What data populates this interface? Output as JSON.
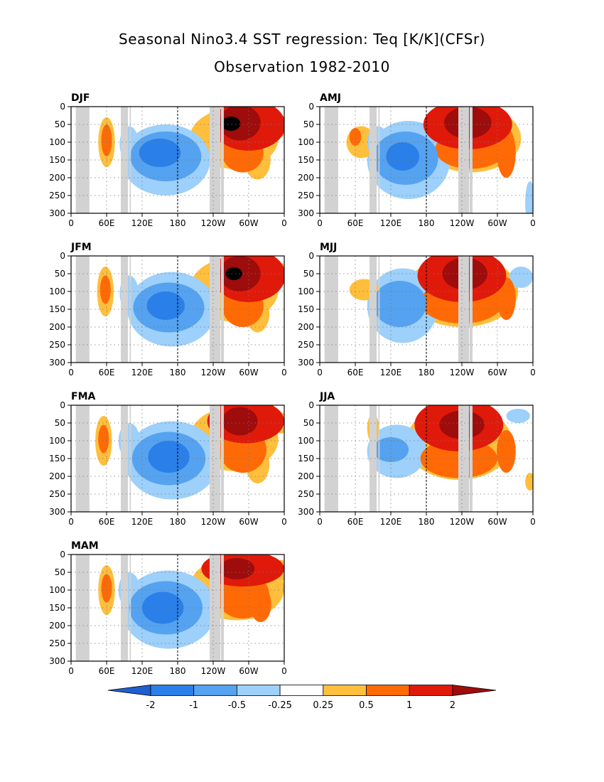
{
  "title": "Seasonal Nino3.4 SST regression: Teq [K/K](CFSr)",
  "subtitle": "Observation 1982-2010",
  "x_ticks": [
    "0",
    "60E",
    "120E",
    "180",
    "120W",
    "60W",
    "0"
  ],
  "y_ticks": [
    "0",
    "50",
    "100",
    "150",
    "200",
    "250",
    "300"
  ],
  "colorbar": {
    "labels": [
      "-2",
      "-1",
      "-0.5",
      "-0.25",
      "0.25",
      "0.5",
      "1",
      "2"
    ],
    "colors": [
      "#1f5fd0",
      "#2a7fe8",
      "#55a2f0",
      "#9dd0fa",
      "#ffffff",
      "#ffbf3c",
      "#ff6a06",
      "#e01a0a",
      "#9e0c0c"
    ]
  },
  "colors": {
    "land": "#d2d2d2",
    "grid": "#777777"
  },
  "chart_data": [
    {
      "type": "heatmap",
      "season": "DJF",
      "xlim": [
        0,
        360
      ],
      "ylim": [
        300,
        0
      ],
      "blobs": [
        {
          "lon": 300,
          "lat": 52,
          "rx": 62,
          "ry": 72,
          "c": 3
        },
        {
          "lon": 285,
          "lat": 45,
          "rx": 35,
          "ry": 50,
          "c": 4
        },
        {
          "lon": 270,
          "lat": 48,
          "rx": 16,
          "ry": 20,
          "c": 5
        },
        {
          "lon": 290,
          "lat": 130,
          "rx": 35,
          "ry": 55,
          "c": 2
        },
        {
          "lon": 315,
          "lat": 150,
          "rx": 22,
          "ry": 55,
          "c": 1
        },
        {
          "lon": 275,
          "lat": 90,
          "rx": 75,
          "ry": 85,
          "c": 1
        },
        {
          "lon": 160,
          "lat": 150,
          "rx": 75,
          "ry": 100,
          "c": -1
        },
        {
          "lon": 160,
          "lat": 140,
          "rx": 60,
          "ry": 70,
          "c": -2
        },
        {
          "lon": 150,
          "lat": 130,
          "rx": 35,
          "ry": 40,
          "c": -3
        },
        {
          "lon": 60,
          "lat": 100,
          "rx": 14,
          "ry": 70,
          "c": 1
        },
        {
          "lon": 60,
          "lat": 95,
          "rx": 9,
          "ry": 45,
          "c": 2
        },
        {
          "lon": 98,
          "lat": 105,
          "rx": 16,
          "ry": 50,
          "c": -1
        },
        {
          "lon": 355,
          "lat": 55,
          "rx": 10,
          "ry": 30,
          "c": 1
        }
      ]
    },
    {
      "type": "heatmap",
      "season": "JFM",
      "xlim": [
        0,
        360
      ],
      "ylim": [
        300,
        0
      ],
      "blobs": [
        {
          "lon": 300,
          "lat": 55,
          "rx": 62,
          "ry": 75,
          "c": 3
        },
        {
          "lon": 285,
          "lat": 50,
          "rx": 35,
          "ry": 50,
          "c": 4
        },
        {
          "lon": 275,
          "lat": 50,
          "rx": 14,
          "ry": 18,
          "c": 5
        },
        {
          "lon": 290,
          "lat": 140,
          "rx": 35,
          "ry": 60,
          "c": 2
        },
        {
          "lon": 315,
          "lat": 160,
          "rx": 20,
          "ry": 55,
          "c": 1
        },
        {
          "lon": 275,
          "lat": 95,
          "rx": 75,
          "ry": 90,
          "c": 1
        },
        {
          "lon": 170,
          "lat": 150,
          "rx": 75,
          "ry": 105,
          "c": -1
        },
        {
          "lon": 165,
          "lat": 145,
          "rx": 60,
          "ry": 70,
          "c": -2
        },
        {
          "lon": 160,
          "lat": 140,
          "rx": 32,
          "ry": 40,
          "c": -3
        },
        {
          "lon": 58,
          "lat": 100,
          "rx": 14,
          "ry": 70,
          "c": 1
        },
        {
          "lon": 58,
          "lat": 95,
          "rx": 9,
          "ry": 40,
          "c": 2
        },
        {
          "lon": 98,
          "lat": 105,
          "rx": 16,
          "ry": 50,
          "c": -1
        },
        {
          "lon": 355,
          "lat": 50,
          "rx": 10,
          "ry": 30,
          "c": 1
        }
      ]
    },
    {
      "type": "heatmap",
      "season": "FMA",
      "xlim": [
        0,
        360
      ],
      "ylim": [
        300,
        0
      ],
      "blobs": [
        {
          "lon": 295,
          "lat": 45,
          "rx": 65,
          "ry": 62,
          "c": 3
        },
        {
          "lon": 285,
          "lat": 45,
          "rx": 30,
          "ry": 40,
          "c": 4
        },
        {
          "lon": 290,
          "lat": 125,
          "rx": 40,
          "ry": 65,
          "c": 2
        },
        {
          "lon": 315,
          "lat": 165,
          "rx": 20,
          "ry": 55,
          "c": 1
        },
        {
          "lon": 275,
          "lat": 95,
          "rx": 75,
          "ry": 90,
          "c": 1
        },
        {
          "lon": 170,
          "lat": 155,
          "rx": 80,
          "ry": 110,
          "c": -1
        },
        {
          "lon": 165,
          "lat": 150,
          "rx": 62,
          "ry": 75,
          "c": -2
        },
        {
          "lon": 165,
          "lat": 145,
          "rx": 35,
          "ry": 45,
          "c": -3
        },
        {
          "lon": 55,
          "lat": 100,
          "rx": 14,
          "ry": 70,
          "c": 1
        },
        {
          "lon": 55,
          "lat": 95,
          "rx": 9,
          "ry": 40,
          "c": 2
        },
        {
          "lon": 98,
          "lat": 100,
          "rx": 18,
          "ry": 50,
          "c": -1
        },
        {
          "lon": 355,
          "lat": 50,
          "rx": 10,
          "ry": 30,
          "c": 1
        }
      ]
    },
    {
      "type": "heatmap",
      "season": "MAM",
      "xlim": [
        0,
        360
      ],
      "ylim": [
        300,
        0
      ],
      "blobs": [
        {
          "lon": 290,
          "lat": 40,
          "rx": 70,
          "ry": 50,
          "c": 3
        },
        {
          "lon": 280,
          "lat": 40,
          "rx": 30,
          "ry": 30,
          "c": 4
        },
        {
          "lon": 290,
          "lat": 115,
          "rx": 45,
          "ry": 65,
          "c": 2
        },
        {
          "lon": 320,
          "lat": 140,
          "rx": 18,
          "ry": 50,
          "c": 2
        },
        {
          "lon": 280,
          "lat": 95,
          "rx": 80,
          "ry": 90,
          "c": 1
        },
        {
          "lon": 165,
          "lat": 155,
          "rx": 80,
          "ry": 110,
          "c": -1
        },
        {
          "lon": 160,
          "lat": 150,
          "rx": 62,
          "ry": 75,
          "c": -2
        },
        {
          "lon": 155,
          "lat": 150,
          "rx": 35,
          "ry": 45,
          "c": -3
        },
        {
          "lon": 60,
          "lat": 100,
          "rx": 14,
          "ry": 70,
          "c": 1
        },
        {
          "lon": 60,
          "lat": 95,
          "rx": 9,
          "ry": 40,
          "c": 2
        },
        {
          "lon": 98,
          "lat": 100,
          "rx": 18,
          "ry": 50,
          "c": -1
        },
        {
          "lon": 355,
          "lat": 45,
          "rx": 10,
          "ry": 30,
          "c": 1
        }
      ]
    },
    {
      "type": "heatmap",
      "season": "AMJ",
      "xlim": [
        0,
        360
      ],
      "ylim": [
        300,
        0
      ],
      "blobs": [
        {
          "lon": 250,
          "lat": 50,
          "rx": 75,
          "ry": 70,
          "c": 3
        },
        {
          "lon": 250,
          "lat": 45,
          "rx": 40,
          "ry": 45,
          "c": 4
        },
        {
          "lon": 255,
          "lat": 120,
          "rx": 60,
          "ry": 55,
          "c": 2
        },
        {
          "lon": 315,
          "lat": 130,
          "rx": 16,
          "ry": 70,
          "c": 2
        },
        {
          "lon": 255,
          "lat": 90,
          "rx": 85,
          "ry": 95,
          "c": 1
        },
        {
          "lon": 150,
          "lat": 150,
          "rx": 70,
          "ry": 110,
          "c": -1
        },
        {
          "lon": 145,
          "lat": 145,
          "rx": 55,
          "ry": 75,
          "c": -2
        },
        {
          "lon": 140,
          "lat": 140,
          "rx": 28,
          "ry": 40,
          "c": -3
        },
        {
          "lon": 70,
          "lat": 100,
          "rx": 25,
          "ry": 45,
          "c": 1
        },
        {
          "lon": 60,
          "lat": 85,
          "rx": 10,
          "ry": 25,
          "c": 2
        },
        {
          "lon": 98,
          "lat": 100,
          "rx": 18,
          "ry": 45,
          "c": -1
        },
        {
          "lon": 355,
          "lat": 270,
          "rx": 8,
          "ry": 60,
          "c": -1
        }
      ]
    },
    {
      "type": "heatmap",
      "season": "MJJ",
      "xlim": [
        0,
        360
      ],
      "ylim": [
        300,
        0
      ],
      "blobs": [
        {
          "lon": 240,
          "lat": 55,
          "rx": 75,
          "ry": 75,
          "c": 3
        },
        {
          "lon": 245,
          "lat": 50,
          "rx": 38,
          "ry": 45,
          "c": 4
        },
        {
          "lon": 240,
          "lat": 130,
          "rx": 70,
          "ry": 60,
          "c": 2
        },
        {
          "lon": 315,
          "lat": 120,
          "rx": 16,
          "ry": 60,
          "c": 2
        },
        {
          "lon": 240,
          "lat": 100,
          "rx": 95,
          "ry": 100,
          "c": 1
        },
        {
          "lon": 140,
          "lat": 140,
          "rx": 60,
          "ry": 105,
          "c": -1
        },
        {
          "lon": 135,
          "lat": 135,
          "rx": 45,
          "ry": 65,
          "c": -2
        },
        {
          "lon": 75,
          "lat": 95,
          "rx": 25,
          "ry": 30,
          "c": 1
        },
        {
          "lon": 340,
          "lat": 60,
          "rx": 20,
          "ry": 30,
          "c": -1
        }
      ]
    },
    {
      "type": "heatmap",
      "season": "JJA",
      "xlim": [
        0,
        360
      ],
      "ylim": [
        300,
        0
      ],
      "blobs": [
        {
          "lon": 235,
          "lat": 55,
          "rx": 75,
          "ry": 75,
          "c": 3
        },
        {
          "lon": 240,
          "lat": 55,
          "rx": 38,
          "ry": 40,
          "c": 4
        },
        {
          "lon": 235,
          "lat": 150,
          "rx": 65,
          "ry": 55,
          "c": 2
        },
        {
          "lon": 315,
          "lat": 130,
          "rx": 16,
          "ry": 60,
          "c": 2
        },
        {
          "lon": 235,
          "lat": 105,
          "rx": 90,
          "ry": 105,
          "c": 1
        },
        {
          "lon": 130,
          "lat": 130,
          "rx": 50,
          "ry": 75,
          "c": -1
        },
        {
          "lon": 120,
          "lat": 125,
          "rx": 30,
          "ry": 35,
          "c": -2
        },
        {
          "lon": 335,
          "lat": 30,
          "rx": 20,
          "ry": 20,
          "c": -1
        },
        {
          "lon": 355,
          "lat": 215,
          "rx": 8,
          "ry": 25,
          "c": 1
        },
        {
          "lon": 90,
          "lat": 65,
          "rx": 10,
          "ry": 40,
          "c": 1
        }
      ]
    }
  ]
}
